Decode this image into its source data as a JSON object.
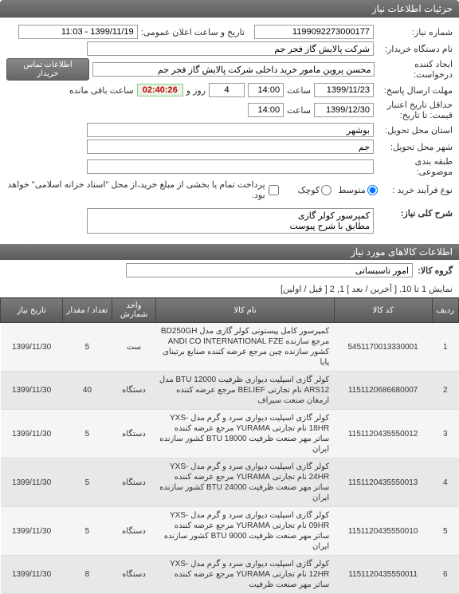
{
  "panel": {
    "title": "جزئیات اطلاعات نیاز"
  },
  "form": {
    "need_no_label": "شماره نیاز:",
    "need_no": "1199092273000177",
    "announce_label": "تاریخ و ساعت اعلان عمومی:",
    "announce_value": "1399/11/19 - 11:03",
    "buyer_org_label": "نام دستگاه خریدار:",
    "buyer_org": "شرکت پالایش گاز فجر جم",
    "creator_label": "ایجاد کننده درخواست:",
    "creator": "محسن پروین مامور خرید داخلی شرکت پالایش گاز فجر جم",
    "contact_btn": "اطلاعات تماس خریدار",
    "deadline_label": "مهلت ارسال پاسخ:",
    "deadline_date": "1399/11/23",
    "time_label": "ساعت",
    "deadline_time": "14:00",
    "countdown_days": "4",
    "days_label": "روز و",
    "countdown_time": "02:40:26",
    "remaining_label": "ساعت باقی مانده",
    "validity_label": "حداقل تاریخ اعتبار قیمت: تا تاریخ:",
    "validity_date": "1399/12/30",
    "validity_time": "14:00",
    "delivery_province_label": "استان محل تحویل:",
    "delivery_province": "بوشهر",
    "delivery_city_label": "شهر محل تحویل:",
    "delivery_city": "جم",
    "category_label": "طبقه بندی موضوعی:",
    "category": "",
    "process_label": "نوع فرآیند خرید :",
    "radio_mid": "متوسط",
    "radio_small": "کوچک",
    "checkbox_label": "پرداخت تمام یا بخشی از مبلغ خرید،از محل \"اسناد خزانه اسلامی\" خواهد بود.",
    "desc_label": "شرح کلی نیاز:",
    "desc_value": "کمپرسور کولر گازی\nمطابق با شرح پیوست"
  },
  "items_section": {
    "header": "اطلاعات کالاهای مورد نیاز",
    "group_label": "گروه کالا:",
    "group_value": "امور تاسیساتی",
    "pagination": "نمایش 1 تا 10. [ آخرین / بعد ] 1, 2 [ قبل / اولین]",
    "columns": {
      "idx": "ردیف",
      "code": "کد کالا",
      "name": "نام کالا",
      "unit": "واحد شمارش",
      "qty": "تعداد / مقدار",
      "date": "تاریخ نیاز"
    },
    "rows": [
      {
        "idx": "1",
        "code": "5451170013330001",
        "name": "کمپرسور کامل پیستونی کولر گازی مدل BD250GH مرجع سازنده ANDI CO INTERNATIONAL FZE کشور سازنده چین مرجع عرضه کننده صنایع برتینای پایا",
        "unit": "ست",
        "qty": "5",
        "date": "1399/11/30"
      },
      {
        "idx": "2",
        "code": "1151120686680007",
        "name": "کولر گازی اسپلیت دیواری ظرفیت BTU 12000 مدل ARS12 نام تجارتی BELIEF مرجع عرضه کننده ارمغان صنعت سیراف",
        "unit": "دستگاه",
        "qty": "40",
        "date": "1399/11/30"
      },
      {
        "idx": "3",
        "code": "1151120435550012",
        "name": "کولر گازی اسپلیت دیواری سرد و گرم مدل YXS-18HR نام تجارتی YURAMA مرجع عرضه کننده ساتر مهر صنعت ظرفیت BTU 18000 کشور سازنده ایران",
        "unit": "دستگاه",
        "qty": "5",
        "date": "1399/11/30"
      },
      {
        "idx": "4",
        "code": "1151120435550013",
        "name": "کولر گازی اسپلیت دیواری سرد و گرم مدل YXS-24HR نام تجارتی YURAMA مرجع عرضه کننده ساتر مهر صنعت ظرفیت BTU 24000 کشور سازنده ایران",
        "unit": "دستگاه",
        "qty": "5",
        "date": "1399/11/30"
      },
      {
        "idx": "5",
        "code": "1151120435550010",
        "name": "کولر گازی اسپلیت دیواری سرد و گرم مدل YXS-09HR نام تجارتی YURAMA مرجع عرضه کننده ساتر مهر صنعت ظرفیت BTU 9000 کشور سازنده ایران",
        "unit": "دستگاه",
        "qty": "5",
        "date": "1399/11/30"
      },
      {
        "idx": "6",
        "code": "1151120435550011",
        "name": "کولر گازی اسپلیت دیواری سرد و گرم مدل YXS-12HR نام تجارتی YURAMA مرجع عرضه کننده ساتر مهر صنعت ظرفیت",
        "unit": "دستگاه",
        "qty": "8",
        "date": "1399/11/30"
      }
    ]
  }
}
